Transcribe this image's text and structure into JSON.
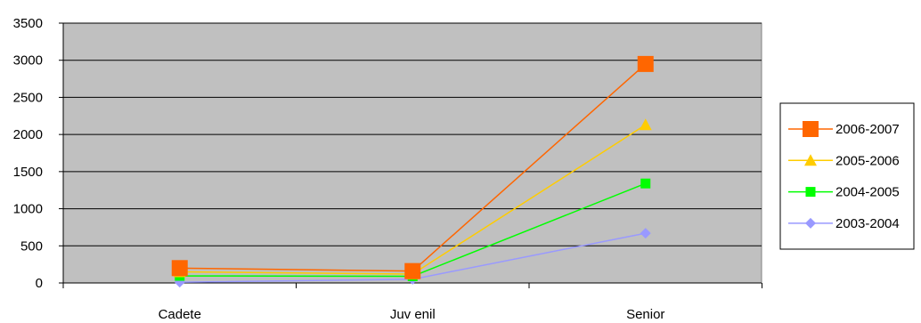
{
  "chart_data": {
    "type": "line",
    "categories": [
      "Cadete",
      "Juv enil",
      "Senior"
    ],
    "ylim": [
      0,
      3500
    ],
    "yticks": [
      0,
      500,
      1000,
      1500,
      2000,
      2500,
      3000,
      3500
    ],
    "ytick_labels": [
      "0",
      "500",
      "1000",
      "1500",
      "2000",
      "2500",
      "3000",
      "3500"
    ],
    "grid": "horizontal",
    "plot_background": "#c0c0c0",
    "legend_position": "right",
    "series": [
      {
        "name": "2006-2007",
        "values": [
          200,
          160,
          2950
        ],
        "color": "#ff6600",
        "marker": "square-large"
      },
      {
        "name": "2005-2006",
        "values": [
          150,
          120,
          2130
        ],
        "color": "#ffcc00",
        "marker": "triangle"
      },
      {
        "name": "2004-2005",
        "values": [
          95,
          90,
          1340
        ],
        "color": "#00ff00",
        "marker": "square"
      },
      {
        "name": "2003-2004",
        "values": [
          10,
          50,
          670
        ],
        "color": "#9999ff",
        "marker": "diamond"
      }
    ]
  }
}
